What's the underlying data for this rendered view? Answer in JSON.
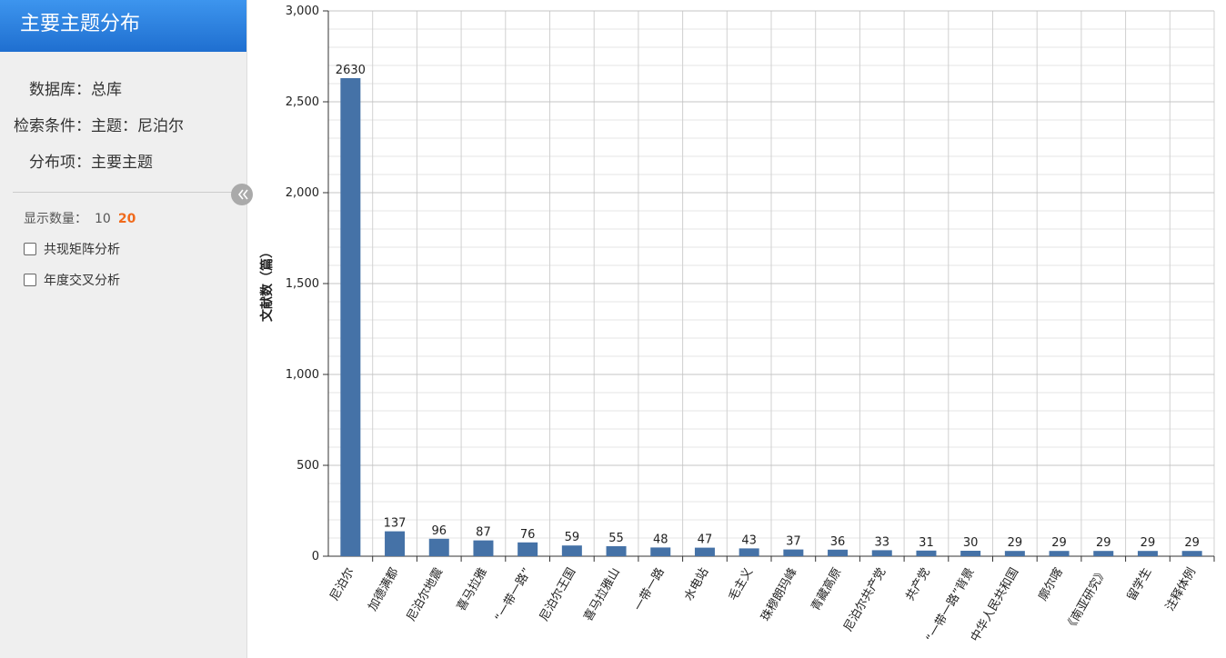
{
  "sidebar": {
    "title": "主要主题分布",
    "fields": [
      {
        "label": "数据库：",
        "value": "总库"
      },
      {
        "label": "检索条件：",
        "value": "主题：尼泊尔"
      },
      {
        "label": "分布项：",
        "value": "主要主题"
      }
    ],
    "display_count": {
      "label": "显示数量：",
      "options": [
        "10",
        "20"
      ]
    },
    "checkboxes": [
      "共现矩阵分析",
      "年度交叉分析"
    ]
  },
  "chart_data": {
    "type": "bar",
    "y_label": "文献数（篇）",
    "categories": [
      "尼泊尔",
      "加德满都",
      "尼泊尔地震",
      "喜马拉雅",
      "“一带一路”",
      "尼泊尔王国",
      "喜马拉雅山",
      "一带一路",
      "水电站",
      "毛主义",
      "珠穆朗玛峰",
      "青藏高原",
      "尼泊尔共产党",
      "共产党",
      "“一带一路”背景",
      "中华人民共和国",
      "廓尔喀",
      "《南亚研究》",
      "留学生",
      "注释体例"
    ],
    "values": [
      2630,
      137,
      96,
      87,
      76,
      59,
      55,
      48,
      47,
      43,
      37,
      36,
      33,
      31,
      30,
      29,
      29,
      29,
      29,
      29
    ],
    "color": "#4572a7",
    "ylim": [
      0,
      3000
    ],
    "yticks": [
      0,
      500,
      {
        "value": 1000,
        "label": "1,000"
      },
      {
        "value": 1500,
        "label": "1,500"
      },
      {
        "value": 2000,
        "label": "2,000"
      },
      {
        "value": 2500,
        "label": "2,500"
      },
      {
        "value": 3000,
        "label": "3,000"
      }
    ],
    "grid": true,
    "minor_grid": true
  }
}
